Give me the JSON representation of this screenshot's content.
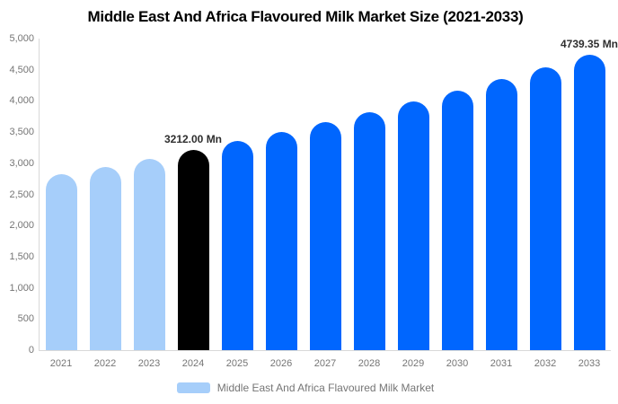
{
  "chart_data": {
    "type": "bar",
    "title": "Middle East And Africa Flavoured Milk Market Size (2021-2033)",
    "xlabel": "",
    "ylabel": "",
    "unit": "Mn",
    "categories": [
      "2021",
      "2022",
      "2023",
      "2024",
      "2025",
      "2026",
      "2027",
      "2028",
      "2029",
      "2030",
      "2031",
      "2032",
      "2033"
    ],
    "values": [
      2820,
      2945,
      3075,
      3212,
      3354,
      3502,
      3657,
      3818,
      3987,
      4163,
      4347,
      4539,
      4739.35
    ],
    "bar_styles": [
      "historical",
      "historical",
      "historical",
      "base",
      "forecast",
      "forecast",
      "forecast",
      "forecast",
      "forecast",
      "forecast",
      "forecast",
      "forecast",
      "forecast"
    ],
    "colors": {
      "historical": "#a6cefa",
      "base": "#000000",
      "forecast": "#0066fe"
    },
    "ylim": [
      0,
      5000
    ],
    "ytick_values": [
      5000,
      4500,
      4000,
      3500,
      3000,
      2500,
      2000,
      1500,
      1000,
      500,
      0
    ],
    "ytick_labels": [
      "5,000",
      "4,500",
      "4,000",
      "3,500",
      "3,000",
      "2,500",
      "2,000",
      "1,500",
      "1,000",
      "500",
      "0"
    ],
    "grid": false,
    "annotations": [
      {
        "category": "2024",
        "text": "3212.00 Mn"
      },
      {
        "category": "2033",
        "text": "4739.35 Mn"
      }
    ],
    "legend": {
      "position": "bottom",
      "swatch_color": "#a6cefa",
      "label": "Middle East And Africa Flavoured Milk Market"
    }
  }
}
